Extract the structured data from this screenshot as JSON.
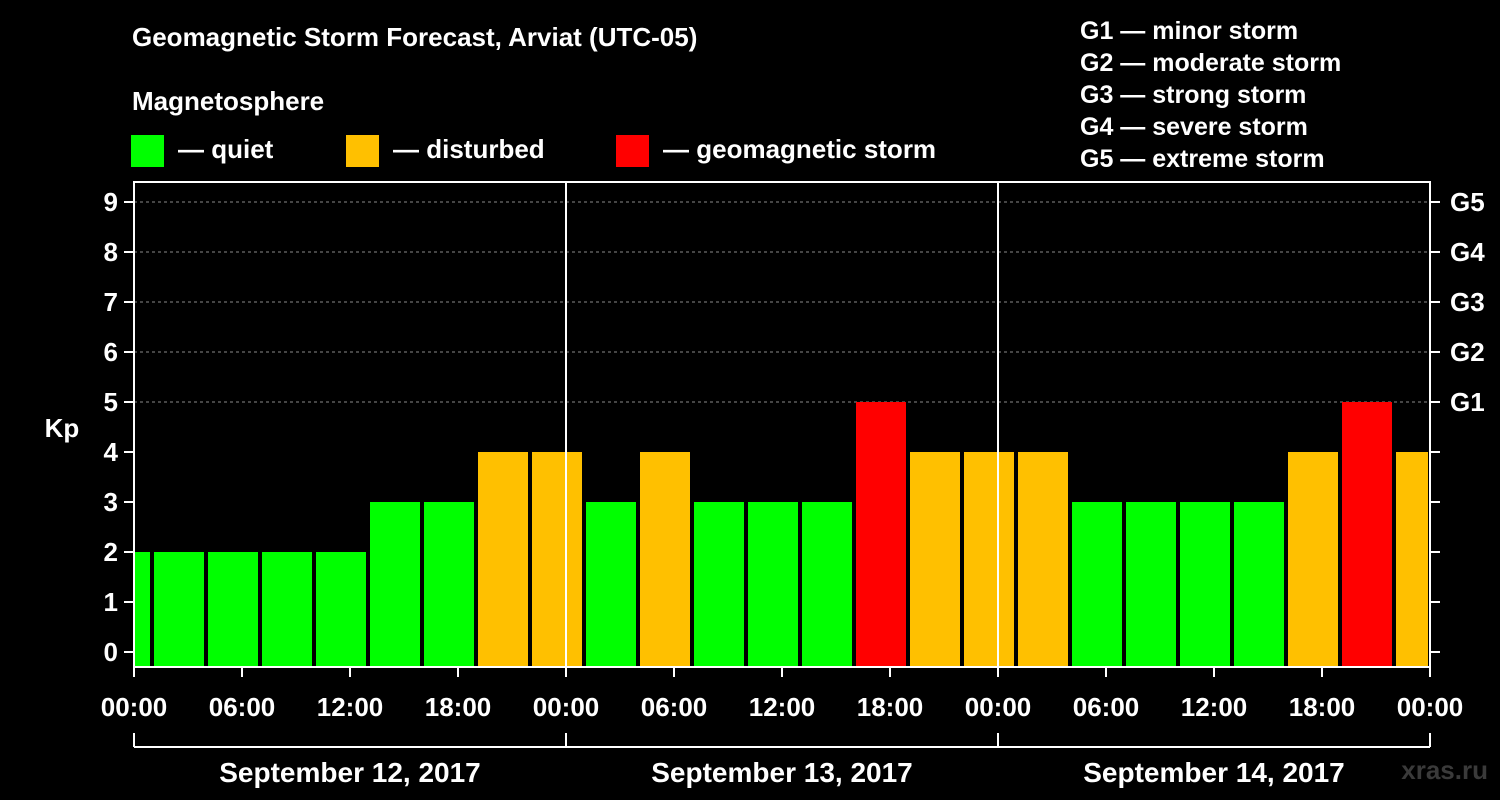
{
  "header": {
    "title": "Geomagnetic Storm Forecast, Arviat (UTC-05)",
    "subtitle": "Magnetosphere"
  },
  "legend": [
    {
      "label": "— quiet",
      "color": "#00ff00"
    },
    {
      "label": "— disturbed",
      "color": "#ffc000"
    },
    {
      "label": "— geomagnetic storm",
      "color": "#ff0000"
    }
  ],
  "storm_scale": [
    "G1 — minor storm",
    "G2 — moderate storm",
    "G3 — strong storm",
    "G4 — severe storm",
    "G5 — extreme storm"
  ],
  "watermark": "xras.ru",
  "chart_data": {
    "type": "bar",
    "ylabel": "Kp",
    "ylim": [
      0,
      9
    ],
    "y_ticks": [
      "0",
      "1",
      "2",
      "3",
      "4",
      "5",
      "6",
      "7",
      "8",
      "9"
    ],
    "right_axis_labels": [
      {
        "kp": 5,
        "label": "G1"
      },
      {
        "kp": 6,
        "label": "G2"
      },
      {
        "kp": 7,
        "label": "G3"
      },
      {
        "kp": 8,
        "label": "G4"
      },
      {
        "kp": 9,
        "label": "G5"
      }
    ],
    "x_tick_labels": [
      "00:00",
      "06:00",
      "12:00",
      "18:00",
      "00:00",
      "06:00",
      "12:00",
      "18:00",
      "00:00",
      "06:00",
      "12:00",
      "18:00",
      "00:00"
    ],
    "days": [
      "September 12, 2017",
      "September 13, 2017",
      "September 14, 2017"
    ],
    "bars": [
      {
        "start": "2017-09-12T00:00",
        "end": "2017-09-12T01:00",
        "kp": 2
      },
      {
        "start": "2017-09-12T01:00",
        "end": "2017-09-12T04:00",
        "kp": 2
      },
      {
        "start": "2017-09-12T04:00",
        "end": "2017-09-12T07:00",
        "kp": 2
      },
      {
        "start": "2017-09-12T07:00",
        "end": "2017-09-12T10:00",
        "kp": 2
      },
      {
        "start": "2017-09-12T10:00",
        "end": "2017-09-12T13:00",
        "kp": 2
      },
      {
        "start": "2017-09-12T13:00",
        "end": "2017-09-12T16:00",
        "kp": 3
      },
      {
        "start": "2017-09-12T16:00",
        "end": "2017-09-12T19:00",
        "kp": 3
      },
      {
        "start": "2017-09-12T19:00",
        "end": "2017-09-12T22:00",
        "kp": 4
      },
      {
        "start": "2017-09-12T22:00",
        "end": "2017-09-13T01:00",
        "kp": 4
      },
      {
        "start": "2017-09-13T01:00",
        "end": "2017-09-13T04:00",
        "kp": 3
      },
      {
        "start": "2017-09-13T04:00",
        "end": "2017-09-13T07:00",
        "kp": 4
      },
      {
        "start": "2017-09-13T07:00",
        "end": "2017-09-13T10:00",
        "kp": 3
      },
      {
        "start": "2017-09-13T10:00",
        "end": "2017-09-13T13:00",
        "kp": 3
      },
      {
        "start": "2017-09-13T13:00",
        "end": "2017-09-13T16:00",
        "kp": 3
      },
      {
        "start": "2017-09-13T16:00",
        "end": "2017-09-13T19:00",
        "kp": 5
      },
      {
        "start": "2017-09-13T19:00",
        "end": "2017-09-13T22:00",
        "kp": 4
      },
      {
        "start": "2017-09-13T22:00",
        "end": "2017-09-14T01:00",
        "kp": 4
      },
      {
        "start": "2017-09-14T01:00",
        "end": "2017-09-14T04:00",
        "kp": 4
      },
      {
        "start": "2017-09-14T04:00",
        "end": "2017-09-14T07:00",
        "kp": 3
      },
      {
        "start": "2017-09-14T07:00",
        "end": "2017-09-14T10:00",
        "kp": 3
      },
      {
        "start": "2017-09-14T10:00",
        "end": "2017-09-14T13:00",
        "kp": 3
      },
      {
        "start": "2017-09-14T13:00",
        "end": "2017-09-14T16:00",
        "kp": 3
      },
      {
        "start": "2017-09-14T16:00",
        "end": "2017-09-14T19:00",
        "kp": 4
      },
      {
        "start": "2017-09-14T19:00",
        "end": "2017-09-14T22:00",
        "kp": 5
      },
      {
        "start": "2017-09-14T22:00",
        "end": "2017-09-15T00:00",
        "kp": 4
      }
    ],
    "colors": {
      "quiet": "#00ff00",
      "disturbed": "#ffc000",
      "storm": "#ff0000"
    }
  }
}
